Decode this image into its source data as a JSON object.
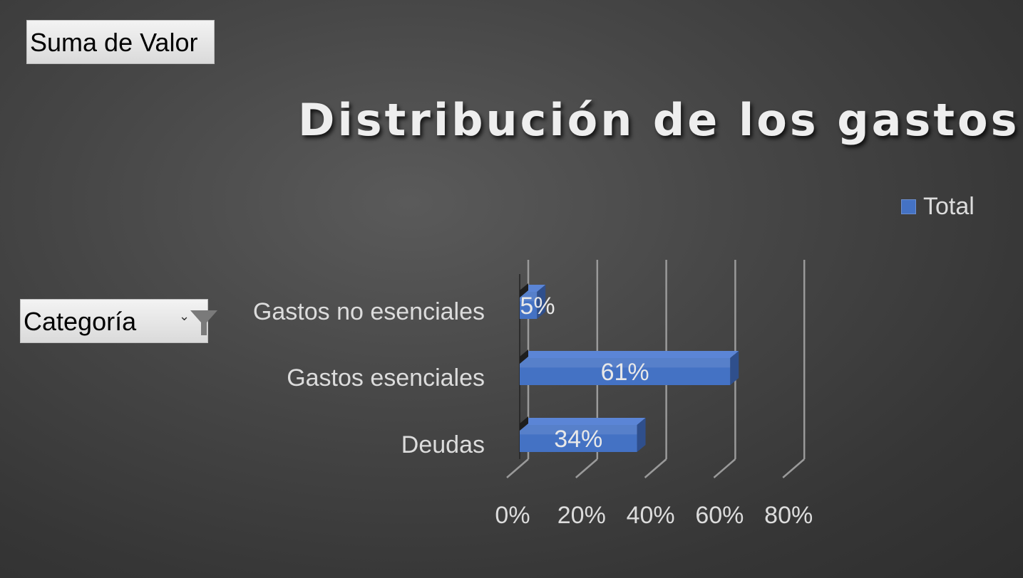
{
  "pivot": {
    "value_field": "Suma de Valor",
    "row_field": "Categoría"
  },
  "icons": {
    "filter": "funnel-icon",
    "dropdown": "dropdown-arrow-icon"
  },
  "colors": {
    "bar": "#4472c4",
    "bar_top": "#5b85d6",
    "bar_side": "#2f4f8c",
    "gridline": "#9a9a9a"
  },
  "chart_data": {
    "type": "bar",
    "orientation": "horizontal",
    "style": "3d",
    "title": "Distribución de los gastos",
    "categories": [
      "Gastos no esenciales",
      "Gastos esenciales",
      "Deudas"
    ],
    "series": [
      {
        "name": "Total",
        "values": [
          0.05,
          0.61,
          0.34
        ],
        "data_labels": [
          "5%",
          "61%",
          "34%"
        ]
      }
    ],
    "xlim": [
      0,
      0.8
    ],
    "x_ticks": [
      0,
      0.2,
      0.4,
      0.6,
      0.8
    ],
    "x_tick_labels": [
      "0%",
      "20%",
      "40%",
      "60%",
      "80%"
    ],
    "grid": true,
    "legend": "right"
  }
}
